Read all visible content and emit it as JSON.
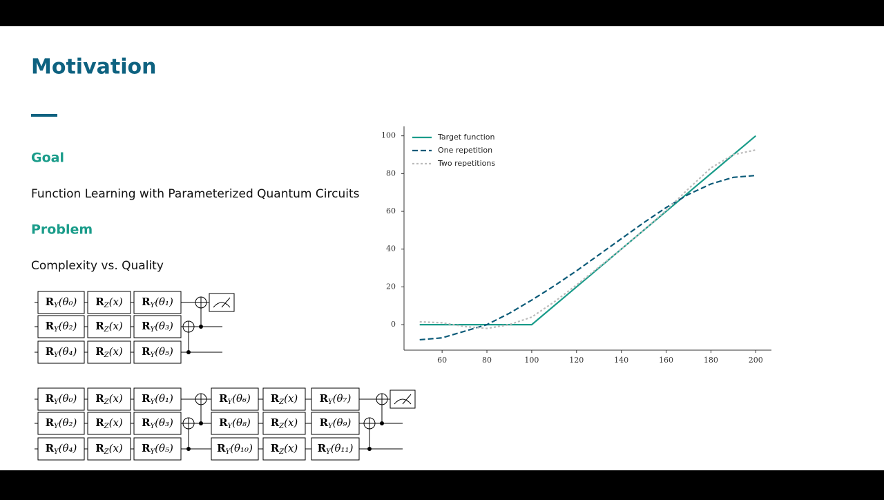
{
  "slide": {
    "title": "Motivation",
    "goal_heading": "Goal",
    "goal_text": "Function Learning with Parameterized Quantum Circuits",
    "problem_heading": "Problem",
    "problem_text": "Complexity vs. Quality"
  },
  "circuits": [
    {
      "wires": [
        [
          {
            "main": "R",
            "sub": "Y",
            "rest": "(θ₀)"
          },
          {
            "main": "R",
            "sub": "Z",
            "rest": "(x)"
          },
          {
            "main": "R",
            "sub": "Y",
            "rest": "(θ₁)"
          }
        ],
        [
          {
            "main": "R",
            "sub": "Y",
            "rest": "(θ₂)"
          },
          {
            "main": "R",
            "sub": "Z",
            "rest": "(x)"
          },
          {
            "main": "R",
            "sub": "Y",
            "rest": "(θ₃)"
          }
        ],
        [
          {
            "main": "R",
            "sub": "Y",
            "rest": "(θ₄)"
          },
          {
            "main": "R",
            "sub": "Z",
            "rest": "(x)"
          },
          {
            "main": "R",
            "sub": "Y",
            "rest": "(θ₅)"
          }
        ]
      ]
    },
    {
      "wires": [
        [
          {
            "main": "R",
            "sub": "Y",
            "rest": "(θ₀)"
          },
          {
            "main": "R",
            "sub": "Z",
            "rest": "(x)"
          },
          {
            "main": "R",
            "sub": "Y",
            "rest": "(θ₁)"
          },
          {
            "main": "R",
            "sub": "Y",
            "rest": "(θ₆)"
          },
          {
            "main": "R",
            "sub": "Z",
            "rest": "(x)"
          },
          {
            "main": "R",
            "sub": "Y",
            "rest": "(θ₇)"
          }
        ],
        [
          {
            "main": "R",
            "sub": "Y",
            "rest": "(θ₂)"
          },
          {
            "main": "R",
            "sub": "Z",
            "rest": "(x)"
          },
          {
            "main": "R",
            "sub": "Y",
            "rest": "(θ₃)"
          },
          {
            "main": "R",
            "sub": "Y",
            "rest": "(θ₈)"
          },
          {
            "main": "R",
            "sub": "Z",
            "rest": "(x)"
          },
          {
            "main": "R",
            "sub": "Y",
            "rest": "(θ₉)"
          }
        ],
        [
          {
            "main": "R",
            "sub": "Y",
            "rest": "(θ₄)"
          },
          {
            "main": "R",
            "sub": "Z",
            "rest": "(x)"
          },
          {
            "main": "R",
            "sub": "Y",
            "rest": "(θ₅)"
          },
          {
            "main": "R",
            "sub": "Y",
            "rest": "(θ₁₀)"
          },
          {
            "main": "R",
            "sub": "Z",
            "rest": "(x)"
          },
          {
            "main": "R",
            "sub": "Y",
            "rest": "(θ₁₁)"
          }
        ]
      ]
    }
  ],
  "chart_data": {
    "type": "line",
    "x": [
      50,
      60,
      70,
      80,
      90,
      100,
      110,
      120,
      130,
      140,
      150,
      160,
      170,
      180,
      190,
      200
    ],
    "series": [
      {
        "name": "Target function",
        "color": "#1a9c8a",
        "style": "solid",
        "values": [
          0,
          0,
          0,
          0,
          0,
          0,
          10,
          20,
          30,
          40,
          50,
          60,
          70,
          80,
          90,
          100
        ]
      },
      {
        "name": "One repetition",
        "color": "#0b5a78",
        "style": "dashed",
        "values": [
          -8,
          -7,
          -3.5,
          0,
          6,
          13,
          20.5,
          28.5,
          37,
          45.5,
          54,
          62,
          69,
          74.5,
          78,
          79
        ]
      },
      {
        "name": "Two repetitions",
        "color": "#bbbbbb",
        "style": "dotted",
        "values": [
          1.5,
          1,
          -1,
          -2,
          0,
          4,
          12,
          21,
          30.5,
          40,
          50,
          60.5,
          72,
          83,
          90,
          92.5
        ]
      }
    ],
    "xlim": [
      43,
      207
    ],
    "ylim": [
      -13.5,
      105
    ],
    "xticks": [
      60,
      80,
      100,
      120,
      140,
      160,
      180,
      200
    ],
    "yticks": [
      0,
      20,
      40,
      60,
      80,
      100
    ],
    "legend": "upper-left",
    "grid": false
  }
}
